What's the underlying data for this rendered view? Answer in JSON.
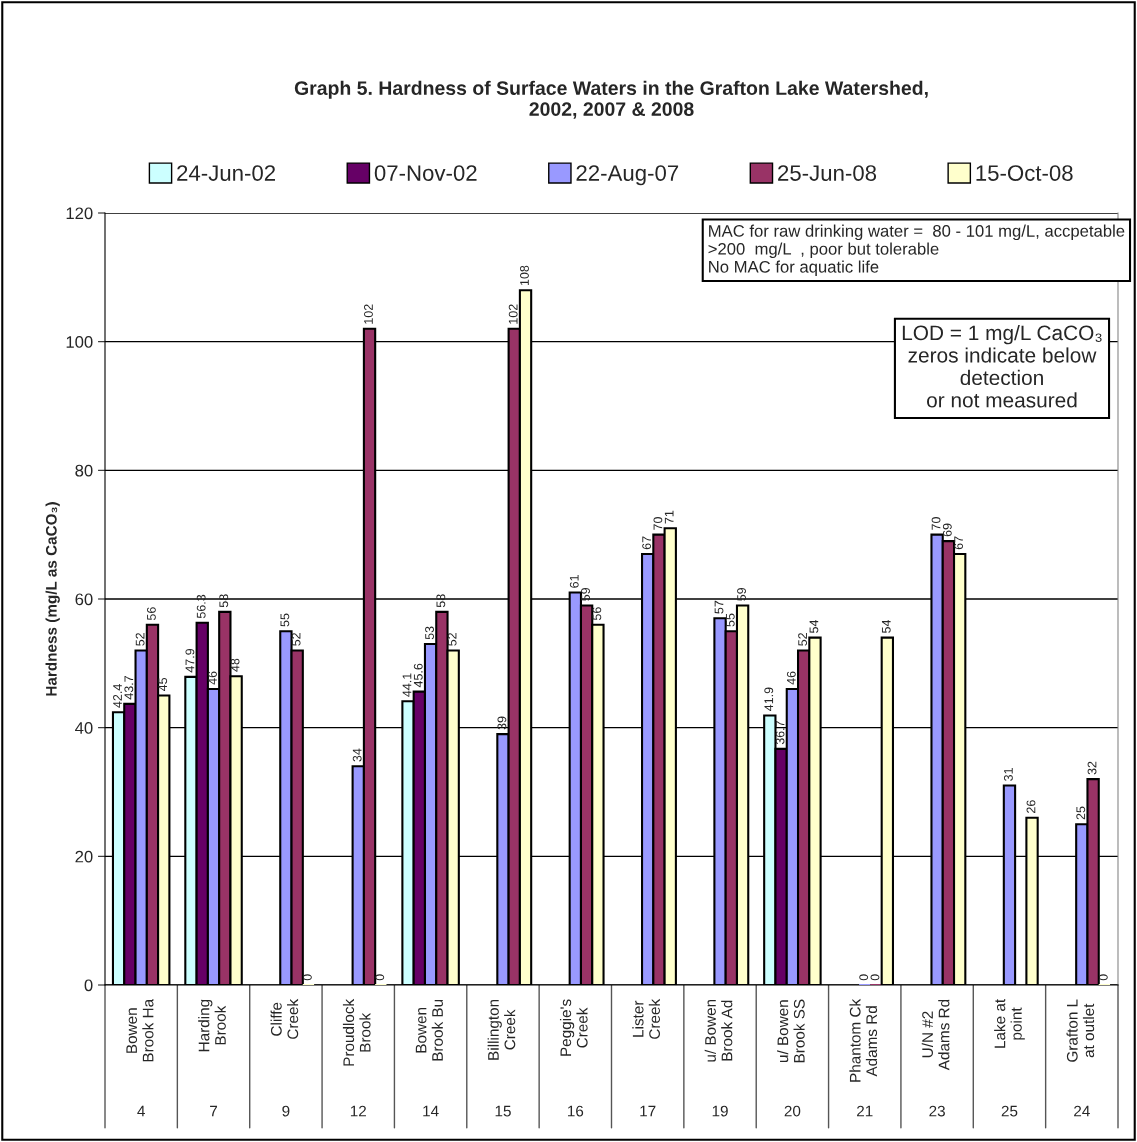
{
  "chart_data": {
    "type": "bar",
    "title": "Graph 5. Hardness of Surface Waters in the Grafton Lake Watershed,\n2002, 2007 & 2008",
    "ylabel": "Hardness (mg/L as CaCO₃)",
    "categories": [
      "Bowen\nBrook Ha",
      "Harding\nBrook",
      "Cliffe\nCreek",
      "Proudlock\nBrook",
      "Bowen\nBrook Bu",
      "Billington\nCreek",
      "Peggie's\nCreek",
      "Lister\nCreek",
      "u/ Bowen\nBrook Ad",
      "u/ Bowen\nBrook SS",
      "Phantom Ck\nAdams Rd",
      "U/N #2\nAdams Rd",
      "Lake at\npoint",
      "Grafton L\nat outlet"
    ],
    "series": [
      {
        "name": "24-Jun-02",
        "color": "#ccffff",
        "values": [
          42.4,
          47.9,
          null,
          null,
          44.1,
          null,
          null,
          null,
          null,
          41.9,
          null,
          null,
          null,
          null
        ]
      },
      {
        "name": "07-Nov-02",
        "color": "#660066",
        "values": [
          43.7,
          56.3,
          null,
          null,
          45.6,
          null,
          null,
          null,
          null,
          36.7,
          null,
          null,
          null,
          null
        ]
      },
      {
        "name": "22-Aug-07",
        "color": "#9999ff",
        "values": [
          52,
          46,
          55,
          34,
          53,
          39,
          61,
          67,
          57,
          46,
          0,
          70,
          31,
          25
        ]
      },
      {
        "name": "25-Jun-08",
        "color": "#993366",
        "values": [
          56,
          58,
          52,
          102,
          58,
          102,
          59,
          70,
          55,
          52,
          0,
          69,
          null,
          32
        ]
      },
      {
        "name": "15-Oct-08",
        "color": "#ffffcc",
        "values": [
          45,
          48,
          0,
          0,
          52,
          108,
          56,
          71,
          59,
          54,
          54,
          67,
          26,
          0
        ]
      }
    ],
    "ylim": [
      0,
      120
    ],
    "yticks": [
      0,
      20,
      40,
      60,
      80,
      100,
      120
    ],
    "grid": "y",
    "legend": "top",
    "data_labels": true,
    "annotations": [
      "MAC for raw drinking water =  80 - 101 mg/L, accpetable\n>200  mg/L  , poor but tolerable\nNo MAC for aquatic life",
      "LOD = 1 mg/L CaCO₃\nzeros indicate below\ndetection\nor not measured",
      "4",
      "7",
      "9",
      "12",
      "14",
      "15",
      "16",
      "17",
      "19",
      "20",
      "21",
      "23",
      "25",
      "24"
    ]
  }
}
